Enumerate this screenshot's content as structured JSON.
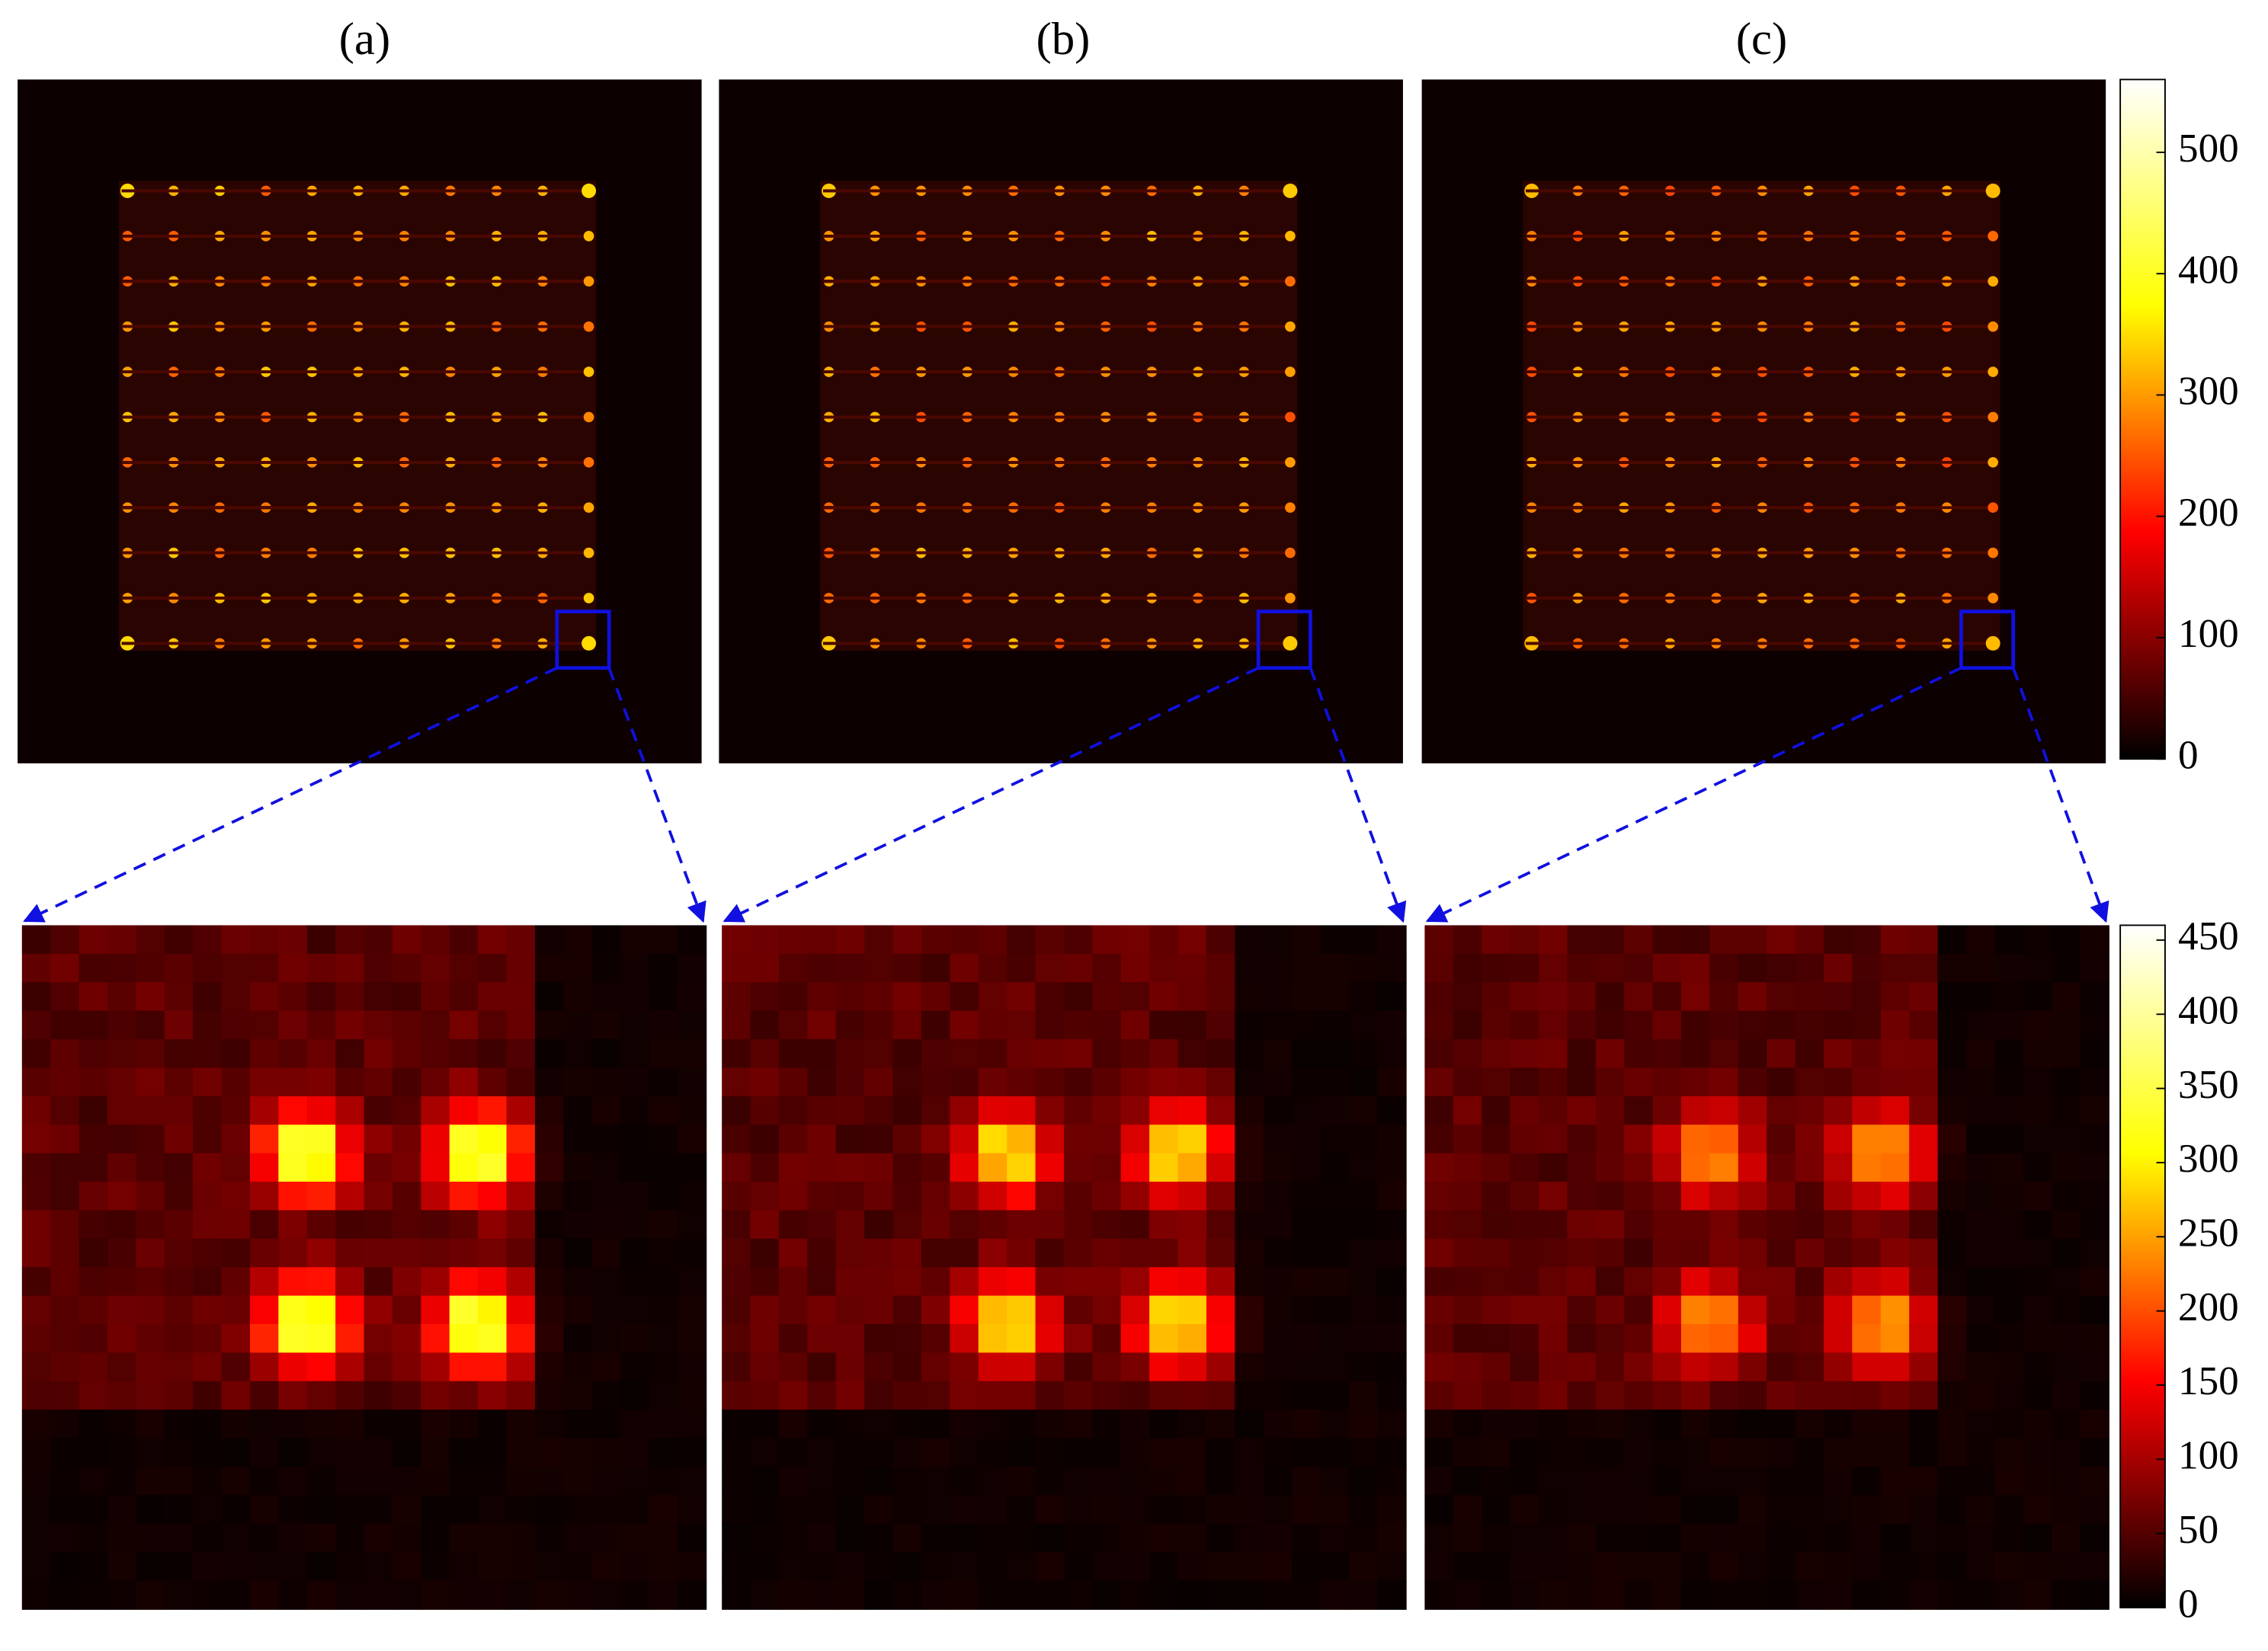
{
  "chart_data": {
    "type": "heatmap",
    "colormap": "hot",
    "titles": [
      "(a)",
      "(b)",
      "(c)"
    ],
    "colorbars": [
      {
        "clim": [
          0,
          560
        ],
        "ticks": [
          0,
          100,
          200,
          300,
          400,
          500
        ]
      },
      {
        "clim": [
          0,
          460
        ],
        "ticks": [
          0,
          50,
          100,
          150,
          200,
          250,
          300,
          350,
          400,
          450
        ]
      }
    ]
  }
}
